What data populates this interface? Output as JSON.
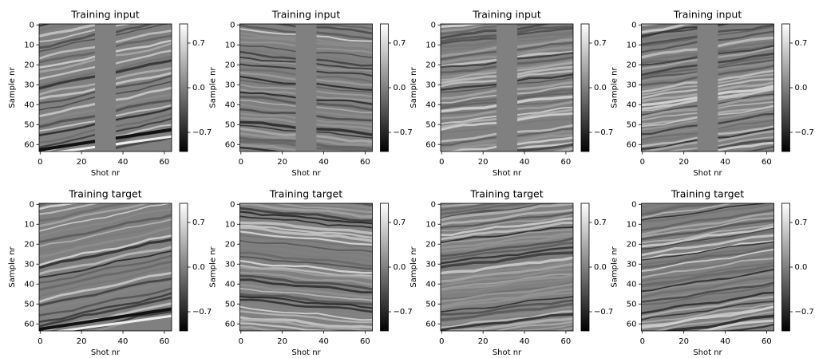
{
  "chart_data": [
    {
      "type": "image",
      "title": "Training input",
      "xlabel": "Shot nr",
      "ylabel": "Sample nr",
      "xlim": [
        -0.5,
        63.5
      ],
      "ylim": [
        63.5,
        -0.5
      ],
      "xticks": [
        0,
        20,
        40,
        60
      ],
      "yticks": [
        0,
        10,
        20,
        30,
        40,
        50,
        60
      ],
      "cmap": "gray",
      "clim": [
        -1,
        1
      ],
      "cticks": [
        0.7,
        {
          "value": 0,
          "label": "0.0"
        },
        {
          "value": -0.7,
          "label": "−0.7"
        }
      ]
    },
    {
      "type": "image",
      "title": "Training input",
      "xlabel": "Shot nr",
      "ylabel": "Sample nr",
      "xlim": [
        -0.5,
        63.5
      ],
      "ylim": [
        63.5,
        -0.5
      ],
      "xticks": [
        0,
        20,
        40,
        60
      ],
      "yticks": [
        0,
        10,
        20,
        30,
        40,
        50,
        60
      ],
      "cmap": "gray",
      "clim": [
        -1,
        1
      ],
      "cticks": [
        0.7,
        {
          "value": 0,
          "label": "0.0"
        },
        {
          "value": -0.7,
          "label": "−0.7"
        }
      ]
    },
    {
      "type": "image",
      "title": "Training input",
      "xlabel": "Shot nr",
      "ylabel": "Sample nr",
      "xlim": [
        -0.5,
        63.5
      ],
      "ylim": [
        63.5,
        -0.5
      ],
      "xticks": [
        0,
        20,
        40,
        60
      ],
      "yticks": [
        0,
        10,
        20,
        30,
        40,
        50,
        60
      ],
      "cmap": "gray",
      "clim": [
        -1,
        1
      ],
      "cticks": [
        0.7,
        {
          "value": 0,
          "label": "0.0"
        },
        {
          "value": -0.7,
          "label": "−0.7"
        }
      ]
    },
    {
      "type": "image",
      "title": "Training input",
      "xlabel": "Shot nr",
      "ylabel": "Sample nr",
      "xlim": [
        -0.5,
        63.5
      ],
      "ylim": [
        63.5,
        -0.5
      ],
      "xticks": [
        0,
        20,
        40,
        60
      ],
      "yticks": [
        0,
        10,
        20,
        30,
        40,
        50,
        60
      ],
      "cmap": "gray",
      "clim": [
        -1,
        1
      ],
      "cticks": [
        0.7,
        {
          "value": 0,
          "label": "0.0"
        },
        {
          "value": -0.7,
          "label": "−0.7"
        }
      ]
    },
    {
      "type": "image",
      "title": "Training target",
      "xlabel": "Shot nr",
      "ylabel": "Sample nr",
      "xlim": [
        -0.5,
        63.5
      ],
      "ylim": [
        63.5,
        -0.5
      ],
      "xticks": [
        0,
        20,
        40,
        60
      ],
      "yticks": [
        0,
        10,
        20,
        30,
        40,
        50,
        60
      ],
      "cmap": "gray",
      "clim": [
        -1,
        1
      ],
      "cticks": [
        0.7,
        {
          "value": 0,
          "label": "0.0"
        },
        {
          "value": -0.7,
          "label": "−0.7"
        }
      ]
    },
    {
      "type": "image",
      "title": "Training target",
      "xlabel": "Shot nr",
      "ylabel": "Sample nr",
      "xlim": [
        -0.5,
        63.5
      ],
      "ylim": [
        63.5,
        -0.5
      ],
      "xticks": [
        0,
        20,
        40,
        60
      ],
      "yticks": [
        0,
        10,
        20,
        30,
        40,
        50,
        60
      ],
      "cmap": "gray",
      "clim": [
        -1,
        1
      ],
      "cticks": [
        0.7,
        {
          "value": 0,
          "label": "0.0"
        },
        {
          "value": -0.7,
          "label": "−0.7"
        }
      ]
    },
    {
      "type": "image",
      "title": "Training target",
      "xlabel": "Shot nr",
      "ylabel": "Sample nr",
      "xlim": [
        -0.5,
        63.5
      ],
      "ylim": [
        63.5,
        -0.5
      ],
      "xticks": [
        0,
        20,
        40,
        60
      ],
      "yticks": [
        0,
        10,
        20,
        30,
        40,
        50,
        60
      ],
      "cmap": "gray",
      "clim": [
        -1,
        1
      ],
      "cticks": [
        0.7,
        {
          "value": 0,
          "label": "0.0"
        },
        {
          "value": -0.7,
          "label": "−0.7"
        }
      ]
    },
    {
      "type": "image",
      "title": "Training target",
      "xlabel": "Shot nr",
      "ylabel": "Sample nr",
      "xlim": [
        -0.5,
        63.5
      ],
      "ylim": [
        63.5,
        -0.5
      ],
      "xticks": [
        0,
        20,
        40,
        60
      ],
      "yticks": [
        0,
        10,
        20,
        30,
        40,
        50,
        60
      ],
      "cmap": "gray",
      "clim": [
        -1,
        1
      ],
      "cticks": [
        0.7,
        {
          "value": 0,
          "label": "0.0"
        },
        {
          "value": -0.7,
          "label": "−0.7"
        }
      ]
    }
  ]
}
